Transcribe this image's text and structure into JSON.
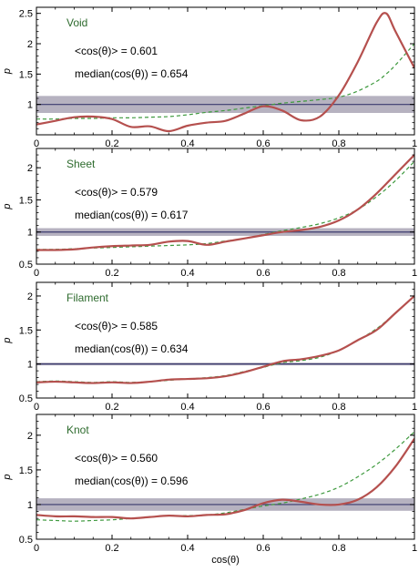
{
  "figure": {
    "xlabel": "cos(θ)",
    "colors": {
      "random_band": "#a9a4b5",
      "random_line": "#3a3a6e",
      "measured": "#b5504e",
      "model": "#3f9a3f",
      "panel_label": "#2e6b2e"
    }
  },
  "chart_data": [
    {
      "type": "line",
      "label": "Void",
      "ylabel": "p",
      "mean_text": "<cos(θ)> = 0.601",
      "median_text": "median(cos(θ)) = 0.654",
      "xlim": [
        0,
        1
      ],
      "ylim": [
        0.5,
        2.6
      ],
      "xticks": [
        0,
        0.2,
        0.4,
        0.6,
        0.8,
        1
      ],
      "xtick_labels": [
        "0",
        "0.2",
        "0.4",
        "0.6",
        "0.8",
        "1"
      ],
      "yticks": [
        1,
        1.5,
        2,
        2.5
      ],
      "ytick_labels": [
        "1",
        "1.5",
        "2",
        "2.5"
      ],
      "band": [
        0.86,
        1.14
      ],
      "x": [
        0,
        0.05,
        0.1,
        0.15,
        0.2,
        0.25,
        0.3,
        0.35,
        0.4,
        0.45,
        0.5,
        0.55,
        0.6,
        0.65,
        0.7,
        0.75,
        0.8,
        0.85,
        0.9,
        0.925,
        0.95,
        1.0
      ],
      "measured": [
        0.67,
        0.73,
        0.79,
        0.8,
        0.76,
        0.63,
        0.64,
        0.56,
        0.65,
        0.7,
        0.73,
        0.85,
        0.97,
        0.9,
        0.74,
        0.8,
        1.15,
        1.7,
        2.35,
        2.5,
        2.2,
        1.6
      ],
      "model": [
        0.76,
        0.76,
        0.77,
        0.77,
        0.78,
        0.78,
        0.79,
        0.8,
        0.83,
        0.87,
        0.9,
        0.94,
        0.98,
        1.02,
        1.05,
        1.08,
        1.12,
        1.22,
        1.38,
        1.5,
        1.65,
        2.0
      ]
    },
    {
      "type": "line",
      "label": "Sheet",
      "ylabel": "p",
      "mean_text": "<cos(θ)> = 0.579",
      "median_text": "median(cos(θ)) = 0.617",
      "xlim": [
        0,
        1
      ],
      "ylim": [
        0.5,
        2.3
      ],
      "xticks": [
        0,
        0.2,
        0.4,
        0.6,
        0.8,
        1
      ],
      "xtick_labels": [
        "0",
        "0.2",
        "0.4",
        "0.6",
        "0.8",
        "1"
      ],
      "yticks": [
        0.5,
        1,
        1.5,
        2
      ],
      "ytick_labels": [
        "0.5",
        "1",
        "1.5",
        "2"
      ],
      "band": [
        0.94,
        1.06
      ],
      "x": [
        0,
        0.05,
        0.1,
        0.15,
        0.2,
        0.25,
        0.3,
        0.35,
        0.4,
        0.45,
        0.5,
        0.55,
        0.6,
        0.65,
        0.7,
        0.75,
        0.8,
        0.85,
        0.9,
        0.95,
        1.0
      ],
      "measured": [
        0.72,
        0.72,
        0.73,
        0.76,
        0.78,
        0.79,
        0.8,
        0.85,
        0.86,
        0.8,
        0.85,
        0.9,
        0.95,
        1.0,
        1.03,
        1.08,
        1.18,
        1.35,
        1.6,
        1.9,
        2.2
      ],
      "model": [
        0.73,
        0.73,
        0.74,
        0.75,
        0.76,
        0.77,
        0.78,
        0.79,
        0.8,
        0.82,
        0.86,
        0.9,
        0.96,
        1.02,
        1.07,
        1.13,
        1.22,
        1.35,
        1.55,
        1.8,
        2.1
      ]
    },
    {
      "type": "line",
      "label": "Filament",
      "ylabel": "p",
      "mean_text": "<cos(θ)> = 0.585",
      "median_text": "median(cos(θ)) = 0.634",
      "xlim": [
        0,
        1
      ],
      "ylim": [
        0.5,
        2.2
      ],
      "xticks": [
        0,
        0.2,
        0.4,
        0.6,
        0.8,
        1
      ],
      "xtick_labels": [
        "0",
        "0.2",
        "0.4",
        "0.6",
        "0.8",
        "1"
      ],
      "yticks": [
        0.5,
        1,
        1.5,
        2
      ],
      "ytick_labels": [
        "0.5",
        "1",
        "1.5",
        "2"
      ],
      "band": [
        0.98,
        1.02
      ],
      "x": [
        0,
        0.05,
        0.1,
        0.15,
        0.2,
        0.25,
        0.3,
        0.35,
        0.4,
        0.45,
        0.5,
        0.55,
        0.6,
        0.65,
        0.7,
        0.75,
        0.8,
        0.85,
        0.9,
        0.95,
        1.0
      ],
      "measured": [
        0.73,
        0.74,
        0.73,
        0.72,
        0.73,
        0.72,
        0.74,
        0.77,
        0.78,
        0.79,
        0.82,
        0.88,
        0.96,
        1.04,
        1.07,
        1.12,
        1.2,
        1.35,
        1.5,
        1.75,
        2.0
      ],
      "model": [
        0.74,
        0.75,
        0.74,
        0.73,
        0.74,
        0.73,
        0.74,
        0.76,
        0.78,
        0.8,
        0.83,
        0.89,
        0.95,
        1.02,
        1.05,
        1.1,
        1.2,
        1.35,
        1.52,
        1.75,
        2.0
      ]
    },
    {
      "type": "line",
      "label": "Knot",
      "ylabel": "p",
      "mean_text": "<cos(θ)> = 0.560",
      "median_text": "median(cos(θ)) = 0.596",
      "xlim": [
        0,
        1
      ],
      "ylim": [
        0.5,
        2.3
      ],
      "xticks": [
        0,
        0.2,
        0.4,
        0.6,
        0.8,
        1
      ],
      "xtick_labels": [
        "0",
        "0.2",
        "0.4",
        "0.6",
        "0.8",
        "1"
      ],
      "yticks": [
        0.5,
        1,
        1.5,
        2
      ],
      "ytick_labels": [
        "0.5",
        "1",
        "1.5",
        "2"
      ],
      "band": [
        0.91,
        1.09
      ],
      "x": [
        0,
        0.05,
        0.1,
        0.15,
        0.2,
        0.25,
        0.3,
        0.35,
        0.4,
        0.45,
        0.5,
        0.55,
        0.6,
        0.65,
        0.7,
        0.75,
        0.8,
        0.85,
        0.9,
        0.95,
        1.0
      ],
      "measured": [
        0.85,
        0.83,
        0.83,
        0.82,
        0.82,
        0.8,
        0.82,
        0.84,
        0.83,
        0.85,
        0.86,
        0.92,
        1.02,
        1.07,
        1.04,
        1.0,
        1.0,
        1.07,
        1.25,
        1.55,
        1.95
      ],
      "model": [
        0.78,
        0.77,
        0.76,
        0.77,
        0.78,
        0.8,
        0.82,
        0.84,
        0.84,
        0.85,
        0.88,
        0.93,
        0.98,
        1.02,
        1.08,
        1.15,
        1.25,
        1.4,
        1.58,
        1.8,
        2.05
      ]
    }
  ]
}
